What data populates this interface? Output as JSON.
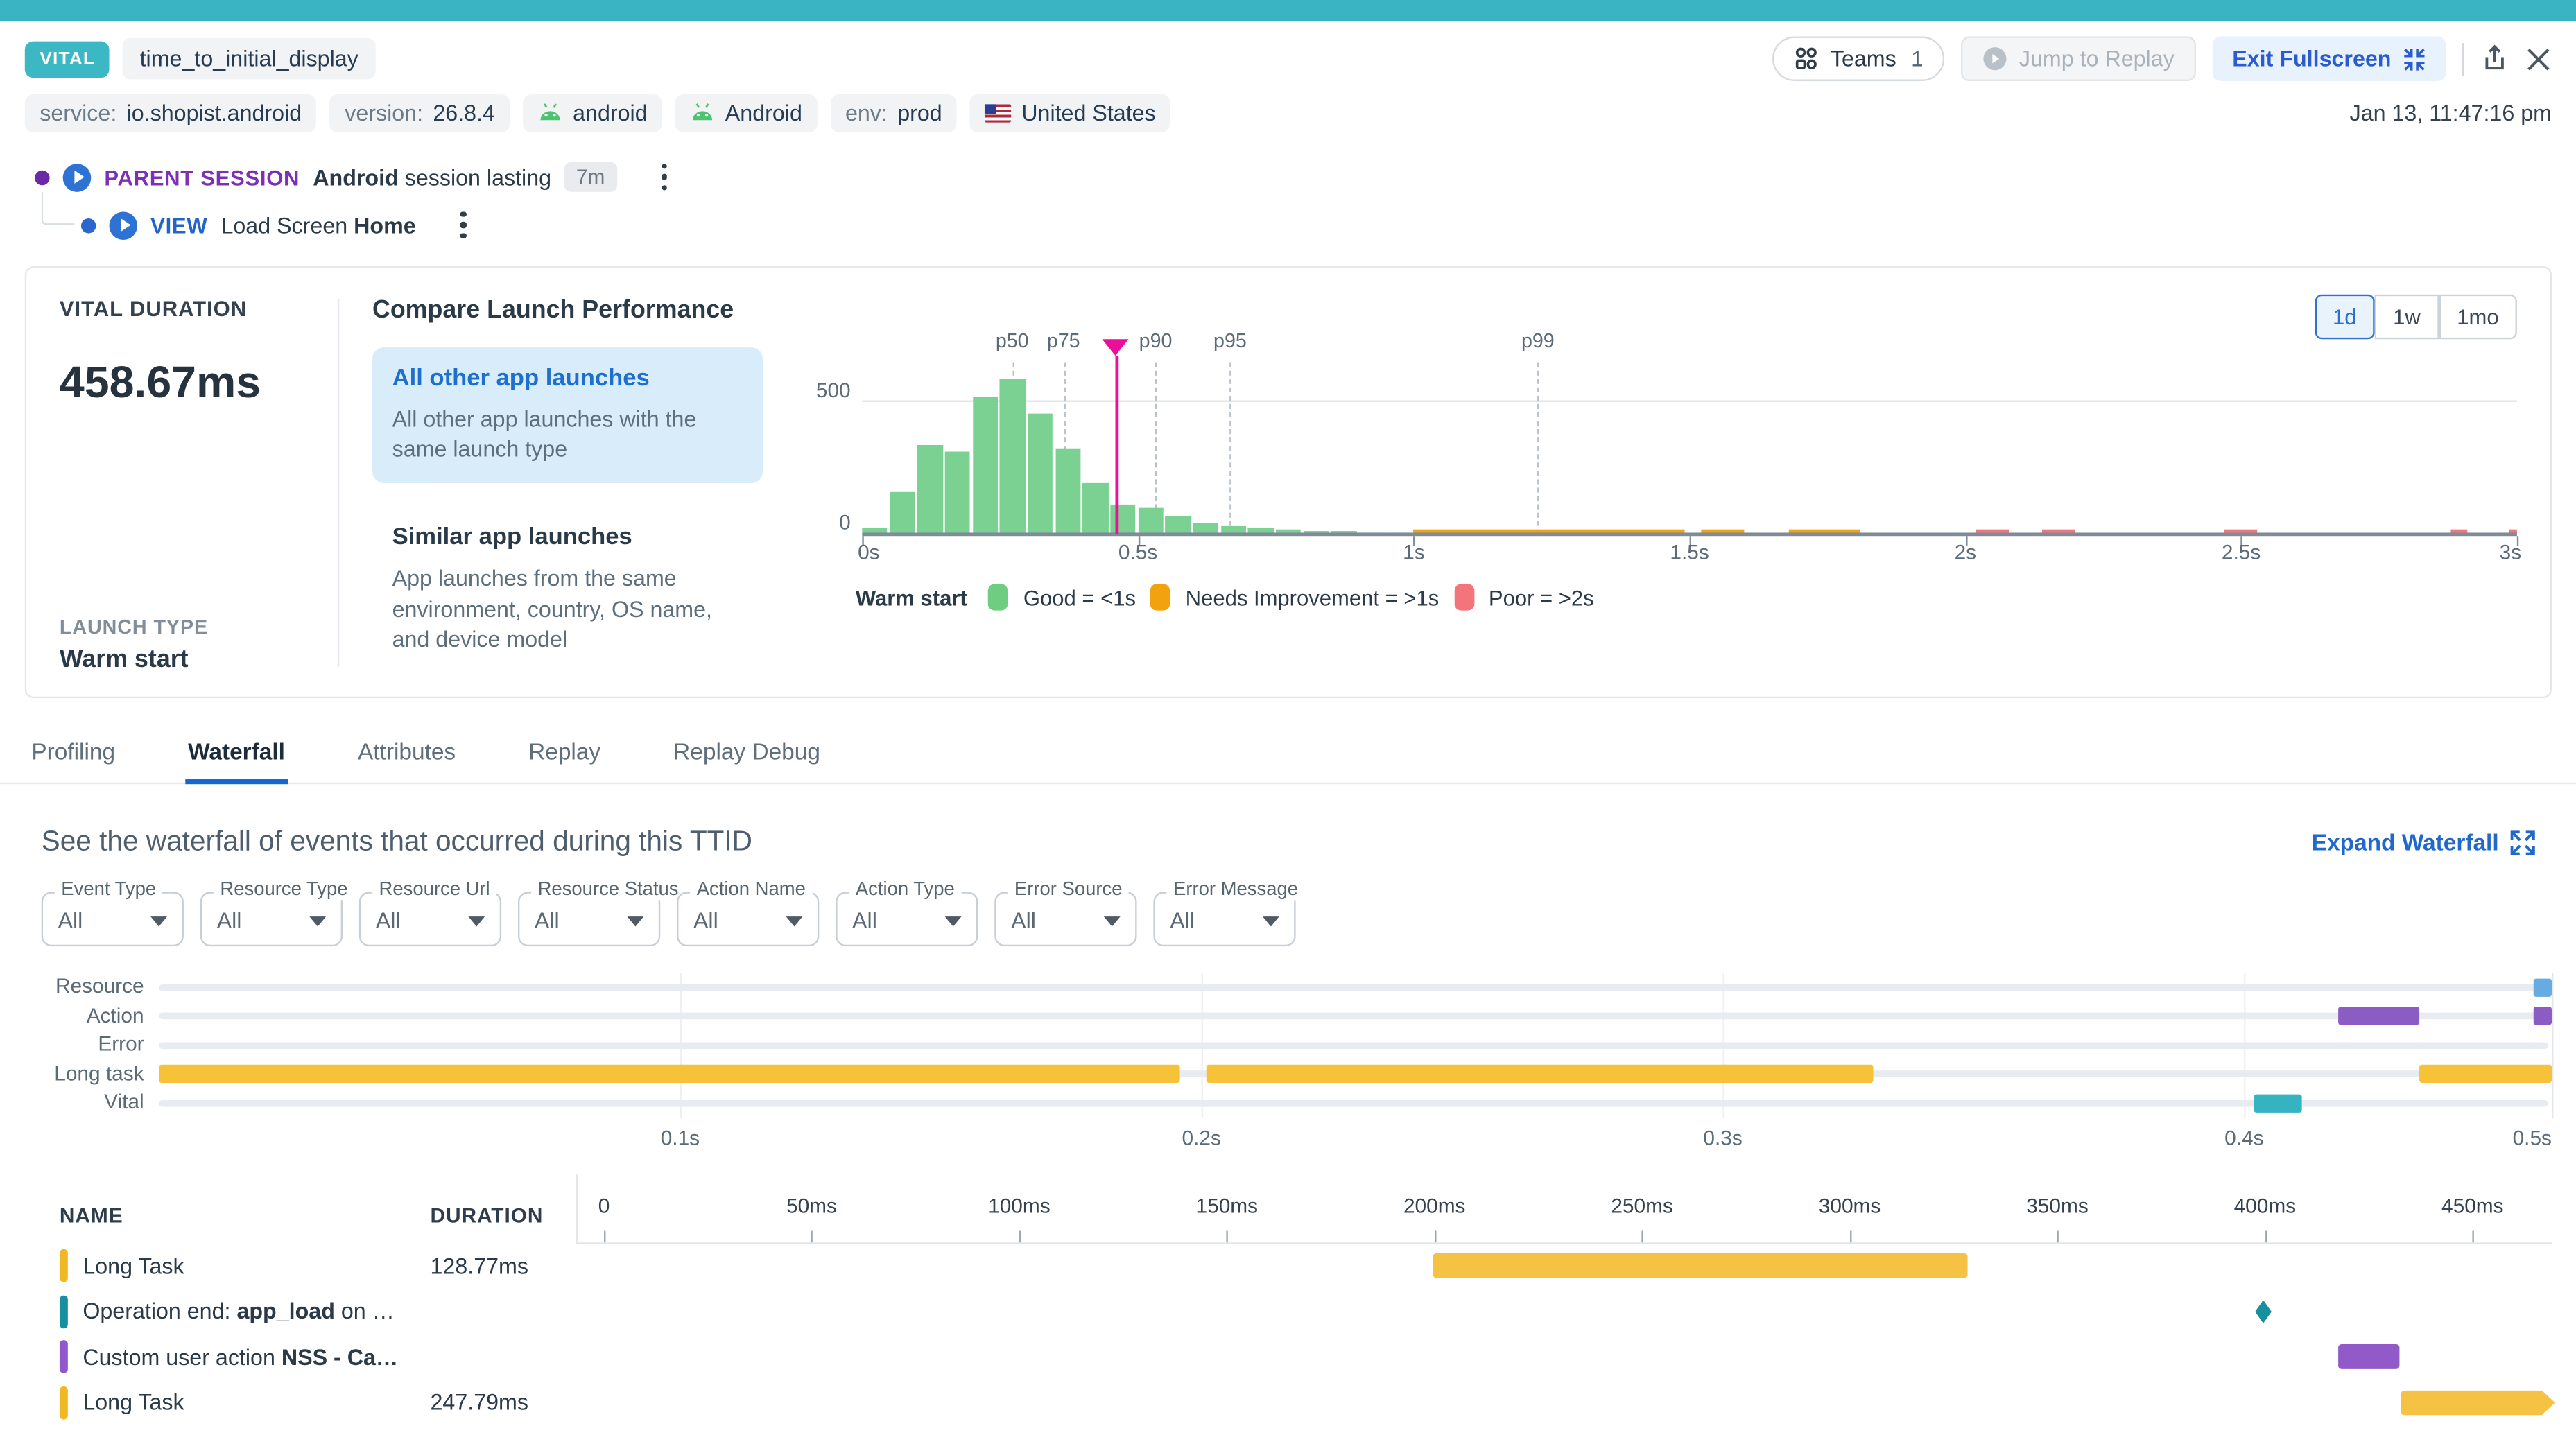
{
  "colors": {
    "topbar_teal": "#3ab3c2",
    "vital_badge": "#3cb7c4",
    "link_blue": "#2168cd",
    "session_purple": "#7d30b5",
    "view_blue": "#2264cc",
    "selected_option_bg": "#d8ecf9",
    "good_green": "#7bd191",
    "needs_orange": "#f2a20d",
    "poor_red": "#f3747b",
    "marker_pink": "#ec0e9a",
    "long_task_yellow": "#f6c238",
    "action_purple": "#8a5cc4",
    "operation_teal": "#178f9e",
    "resource_blue": "#66abe2",
    "vital_teal": "#36b3c0"
  },
  "header": {
    "vital_badge": "VITAL",
    "title": "time_to_initial_display",
    "teams_label": "Teams",
    "teams_count": "1",
    "jump_to_replay": "Jump to Replay",
    "exit_fullscreen": "Exit Fullscreen",
    "timestamp": "Jan 13, 11:47:16 pm"
  },
  "tags": [
    {
      "key": "service:",
      "value": "io.shopist.android",
      "icon": ""
    },
    {
      "key": "version:",
      "value": "26.8.4",
      "icon": ""
    },
    {
      "key": "",
      "value": "android",
      "icon": "android"
    },
    {
      "key": "",
      "value": "Android",
      "icon": "android"
    },
    {
      "key": "env:",
      "value": "prod",
      "icon": ""
    },
    {
      "key": "",
      "value": "United States",
      "icon": "us-flag"
    }
  ],
  "session": {
    "parent": {
      "label": "PARENT SESSION",
      "device": "Android",
      "text": " session lasting",
      "duration_badge": "7m"
    },
    "view": {
      "label": "VIEW",
      "text": "Load Screen",
      "screen": "Home"
    }
  },
  "vital_card": {
    "duration_label": "VITAL DURATION",
    "duration_value": "458.67ms",
    "launch_type_label": "LAUNCH TYPE",
    "launch_type_value": "Warm start"
  },
  "compare": {
    "title": "Compare Launch Performance",
    "options": [
      {
        "title": "All other app launches",
        "desc": "All other app launches with the same launch type",
        "selected": true
      },
      {
        "title": "Similar app launches",
        "desc": "App launches from the same environment, country, OS name, and device model",
        "selected": false
      }
    ],
    "ranges": [
      "1d",
      "1w",
      "1mo"
    ],
    "selected_range": "1d"
  },
  "chart_data": {
    "type": "bar",
    "title": "Launch duration distribution",
    "bin_width_s": 0.05,
    "x_range_s": [
      0,
      3
    ],
    "y_max": 650,
    "y_tick_labels": [
      "500",
      "0"
    ],
    "y_tick_values": [
      500,
      0
    ],
    "good_bins": {
      "start_s": 0,
      "values": [
        27,
        162,
        336,
        313,
        517,
        586,
        455,
        328,
        196,
        113,
        98,
        68,
        46,
        31,
        26,
        20,
        15,
        12,
        8,
        5
      ]
    },
    "needs_improvement_segments_s": [
      [
        1.0,
        1.49
      ],
      [
        1.52,
        1.6
      ],
      [
        1.68,
        1.81
      ]
    ],
    "poor_segments_s": [
      [
        2.02,
        2.08
      ],
      [
        2.14,
        2.2
      ],
      [
        2.47,
        2.53
      ],
      [
        2.88,
        2.91
      ],
      [
        2.985,
        3.0
      ]
    ],
    "percentiles": [
      {
        "label": "p50",
        "v": 0.272
      },
      {
        "label": "p75",
        "v": 0.365
      },
      {
        "label": "p90",
        "v": 0.532
      },
      {
        "label": "p95",
        "v": 0.667
      },
      {
        "label": "p99",
        "v": 1.225
      }
    ],
    "marker_s": 0.4587,
    "x_ticks": [
      {
        "label": "0s",
        "v": 0
      },
      {
        "label": "0.5s",
        "v": 0.5
      },
      {
        "label": "1s",
        "v": 1
      },
      {
        "label": "1.5s",
        "v": 1.5
      },
      {
        "label": "2s",
        "v": 2
      },
      {
        "label": "2.5s",
        "v": 2.5
      },
      {
        "label": "3s",
        "v": 3
      }
    ],
    "legend": {
      "title": "Warm start",
      "items": [
        {
          "label": "Good = <1s",
          "color": "#6fcd82"
        },
        {
          "label": "Needs Improvement = >1s",
          "color": "#f2a20d"
        },
        {
          "label": "Poor = >2s",
          "color": "#f3747b"
        }
      ]
    }
  },
  "tabs": {
    "items": [
      "Profiling",
      "Waterfall",
      "Attributes",
      "Replay",
      "Replay Debug"
    ],
    "active": "Waterfall"
  },
  "waterfall": {
    "heading": "See the waterfall of events that occurred during this TTID",
    "expand_label": "Expand Waterfall"
  },
  "filters": [
    {
      "label": "Event Type",
      "value": "All"
    },
    {
      "label": "Resource Type",
      "value": "All"
    },
    {
      "label": "Resource Url",
      "value": "All"
    },
    {
      "label": "Resource Status",
      "value": "All"
    },
    {
      "label": "Action Name",
      "value": "All"
    },
    {
      "label": "Action Type",
      "value": "All"
    },
    {
      "label": "Error Source",
      "value": "All"
    },
    {
      "label": "Error Message",
      "value": "All"
    }
  ],
  "minimap": {
    "axis_max_s": 0.459,
    "ticks": [
      {
        "label": "0.1s",
        "v": 0.1
      },
      {
        "label": "0.2s",
        "v": 0.2
      },
      {
        "label": "0.3s",
        "v": 0.3
      },
      {
        "label": "0.4s",
        "v": 0.4
      },
      {
        "label": "0.5s",
        "v": 0.459
      }
    ],
    "rows": [
      {
        "label": "Resource",
        "color": "#66abe2",
        "bars": [
          [
            0.4555,
            0.459
          ]
        ]
      },
      {
        "label": "Action",
        "color": "#8a5cc4",
        "bars": [
          [
            0.418,
            0.4335
          ],
          [
            0.4555,
            0.459
          ]
        ]
      },
      {
        "label": "Error",
        "color": "#e25a66",
        "bars": []
      },
      {
        "label": "Long task",
        "color": "#f6c238",
        "bars": [
          [
            0,
            0.196
          ],
          [
            0.201,
            0.329
          ],
          [
            0.4335,
            0.459
          ]
        ]
      },
      {
        "label": "Vital",
        "color": "#36b3c0",
        "bars": [
          [
            0.402,
            0.411
          ]
        ]
      }
    ]
  },
  "table": {
    "name_header": "NAME",
    "duration_header": "DURATION",
    "axis_max_ms": 465,
    "axis_ticks": [
      {
        "label": "0",
        "ms": 0
      },
      {
        "label": "50ms",
        "ms": 50
      },
      {
        "label": "100ms",
        "ms": 100
      },
      {
        "label": "150ms",
        "ms": 150
      },
      {
        "label": "200ms",
        "ms": 200
      },
      {
        "label": "250ms",
        "ms": 250
      },
      {
        "label": "300ms",
        "ms": 300
      },
      {
        "label": "350ms",
        "ms": 350
      },
      {
        "label": "400ms",
        "ms": 400
      },
      {
        "label": "450ms",
        "ms": 450
      }
    ],
    "rows": [
      {
        "kind": "long-task",
        "pill_color": "#f0b822",
        "segments": [
          {
            "t": "Long Task",
            "b": false
          }
        ],
        "duration": "128.77ms",
        "bar": {
          "start_ms": 200,
          "end_ms": 328.77,
          "color": "#f6c244",
          "clipped": false
        }
      },
      {
        "kind": "operation",
        "pill_color": "#178f9e",
        "segments": [
          {
            "t": "Operation end: ",
            "b": false
          },
          {
            "t": "app_load",
            "b": true
          },
          {
            "t": " on …",
            "b": false
          }
        ],
        "duration": "",
        "marker_ms": 400
      },
      {
        "kind": "action",
        "pill_color": "#9257cb",
        "segments": [
          {
            "t": "Custom user action ",
            "b": false
          },
          {
            "t": "NSS - Ca…",
            "b": true
          }
        ],
        "duration": "",
        "bar": {
          "start_ms": 418,
          "end_ms": 433,
          "color": "#9259c8",
          "clipped": false
        }
      },
      {
        "kind": "long-task",
        "pill_color": "#f0b822",
        "segments": [
          {
            "t": "Long Task",
            "b": false
          }
        ],
        "duration": "247.79ms",
        "bar": {
          "start_ms": 433,
          "end_ms": 680.79,
          "color": "#f6c244",
          "clipped": true
        }
      }
    ]
  }
}
